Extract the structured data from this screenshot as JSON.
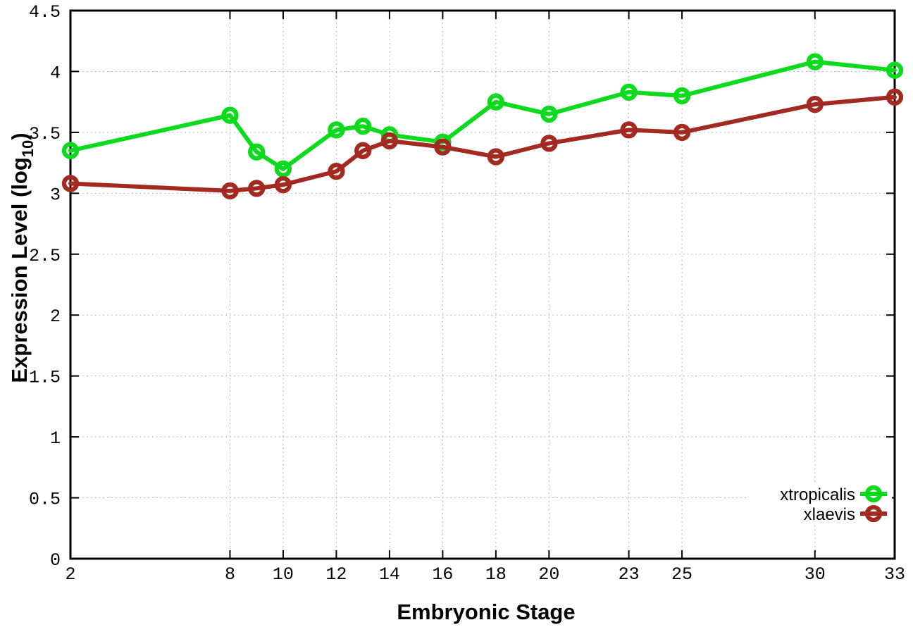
{
  "chart_data": {
    "type": "line",
    "title": "",
    "xlabel": "Embryonic Stage",
    "ylabel": "Expression Level (log10)",
    "ylabel_parts": {
      "prefix": "Expression Level (log",
      "sub": "10",
      "suffix": ")"
    },
    "xlim": [
      2,
      33
    ],
    "ylim": [
      0,
      4.5
    ],
    "grid": true,
    "legend_position": "bottom-right-inside",
    "x_ticks": [
      {
        "v": 2,
        "label": "2"
      },
      {
        "v": 8,
        "label": "8"
      },
      {
        "v": 10,
        "label": "10"
      },
      {
        "v": 12,
        "label": "12"
      },
      {
        "v": 14,
        "label": "14"
      },
      {
        "v": 16,
        "label": "16"
      },
      {
        "v": 18,
        "label": "18"
      },
      {
        "v": 20,
        "label": "20"
      },
      {
        "v": 23,
        "label": "23"
      },
      {
        "v": 25,
        "label": "25"
      },
      {
        "v": 30,
        "label": "30"
      },
      {
        "v": 33,
        "label": "33"
      }
    ],
    "y_ticks": [
      {
        "v": 0,
        "label": "0"
      },
      {
        "v": 0.5,
        "label": "0.5"
      },
      {
        "v": 1,
        "label": "1"
      },
      {
        "v": 1.5,
        "label": "1.5"
      },
      {
        "v": 2,
        "label": "2"
      },
      {
        "v": 2.5,
        "label": "2.5"
      },
      {
        "v": 3,
        "label": "3"
      },
      {
        "v": 3.5,
        "label": "3.5"
      },
      {
        "v": 4,
        "label": "4"
      },
      {
        "v": 4.5,
        "label": "4.5"
      }
    ],
    "x": [
      2,
      8,
      9,
      10,
      12,
      13,
      14,
      16,
      18,
      20,
      23,
      25,
      30,
      33
    ],
    "series": [
      {
        "name": "xtropicalis",
        "color": "#0bda1d",
        "values": [
          3.35,
          3.64,
          3.34,
          3.2,
          3.52,
          3.55,
          3.48,
          3.42,
          3.75,
          3.65,
          3.83,
          3.8,
          4.08,
          4.01
        ]
      },
      {
        "name": "xlaevis",
        "color": "#a32a21",
        "values": [
          3.08,
          3.02,
          3.04,
          3.07,
          3.18,
          3.35,
          3.43,
          3.38,
          3.3,
          3.41,
          3.52,
          3.5,
          3.73,
          3.79
        ]
      }
    ],
    "colors": {
      "axis": "#000000",
      "grid": "#a8a8a8",
      "background": "#ffffff"
    }
  }
}
